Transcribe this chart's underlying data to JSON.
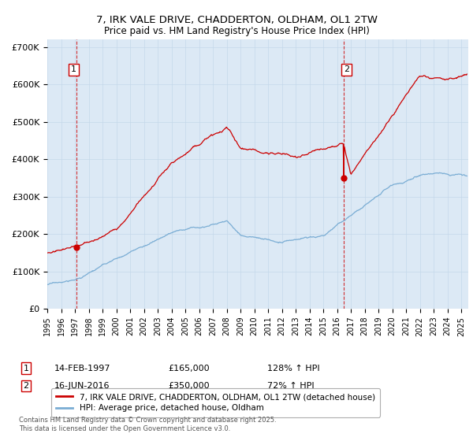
{
  "title": "7, IRK VALE DRIVE, CHADDERTON, OLDHAM, OL1 2TW",
  "subtitle": "Price paid vs. HM Land Registry's House Price Index (HPI)",
  "background_color": "#dce9f5",
  "plot_bg_color": "#dce9f5",
  "ylim": [
    0,
    720000
  ],
  "yticks": [
    0,
    100000,
    200000,
    300000,
    400000,
    500000,
    600000,
    700000
  ],
  "ytick_labels": [
    "£0",
    "£100K",
    "£200K",
    "£300K",
    "£400K",
    "£500K",
    "£600K",
    "£700K"
  ],
  "xlim_start": 1995.0,
  "xlim_end": 2025.5,
  "sale1_date": 1997.12,
  "sale1_price": 165000,
  "sale2_date": 2016.46,
  "sale2_price": 350000,
  "sale1_date_str": "14-FEB-1997",
  "sale1_price_str": "£165,000",
  "sale1_hpi_str": "128% ↑ HPI",
  "sale2_date_str": "16-JUN-2016",
  "sale2_price_str": "£350,000",
  "sale2_hpi_str": "72% ↑ HPI",
  "legend_line1": "7, IRK VALE DRIVE, CHADDERTON, OLDHAM, OL1 2TW (detached house)",
  "legend_line2": "HPI: Average price, detached house, Oldham",
  "footer": "Contains HM Land Registry data © Crown copyright and database right 2025.\nThis data is licensed under the Open Government Licence v3.0.",
  "red_color": "#cc0000",
  "blue_color": "#7aadd4",
  "grid_color": "#c5d8ea"
}
